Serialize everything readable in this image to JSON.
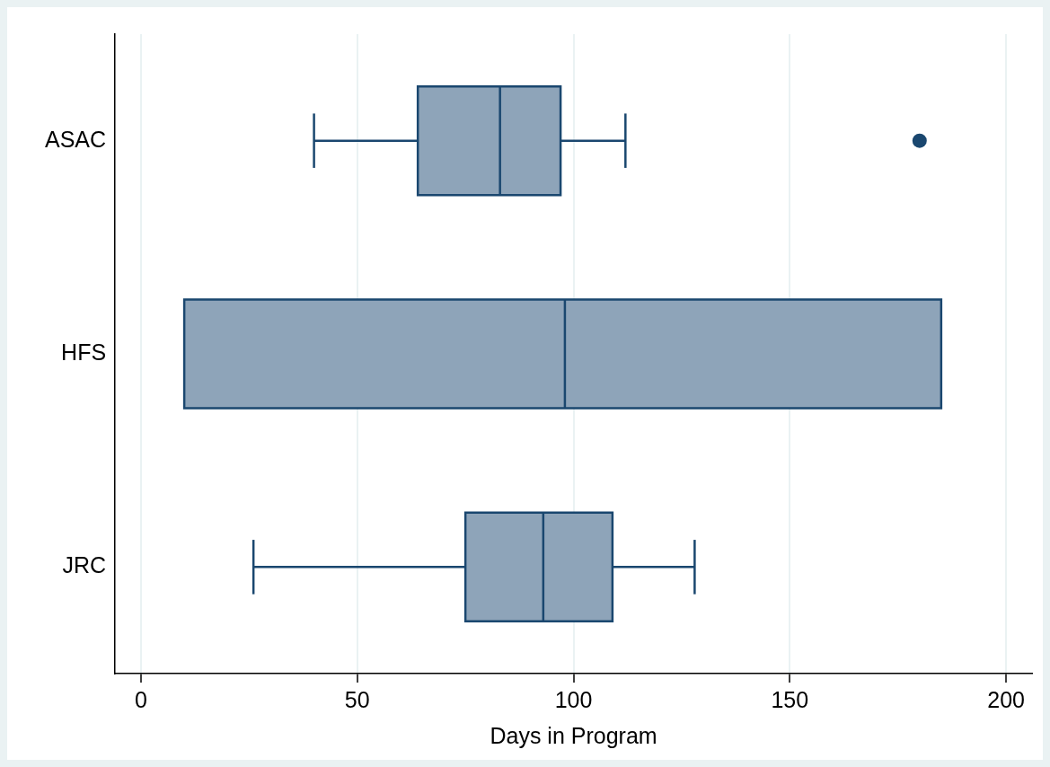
{
  "chart_data": {
    "type": "box",
    "orientation": "horizontal",
    "xlabel": "Days in Program",
    "categories": [
      "ASAC",
      "HFS",
      "JRC"
    ],
    "boxes": [
      {
        "low": 40,
        "q1": 64,
        "median": 83,
        "q3": 97,
        "high": 112,
        "outliers": [
          180
        ]
      },
      {
        "low": 10,
        "q1": 10,
        "median": 98,
        "q3": 185,
        "high": 185
      },
      {
        "low": 26,
        "q1": 75,
        "median": 93,
        "q3": 109,
        "high": 128
      }
    ],
    "color": "#8ea4b9",
    "xlim": [
      -6,
      206
    ],
    "xticks": [
      0,
      50,
      100,
      150,
      200
    ],
    "grid": "x",
    "legend": false
  }
}
